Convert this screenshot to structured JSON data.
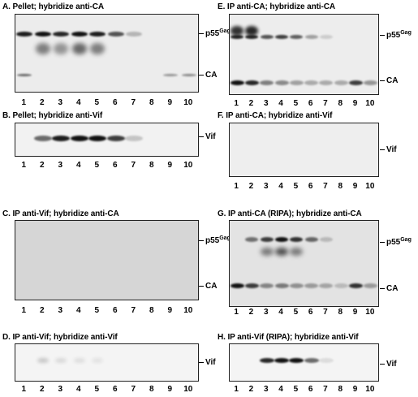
{
  "panels": [
    {
      "id": "A",
      "title": "A. Pellet; hybridize anti-CA",
      "markers": [
        {
          "main": "p55",
          "sup": "Gag"
        },
        {
          "main": "CA",
          "sup": ""
        }
      ]
    },
    {
      "id": "B",
      "title": "B. Pellet; hybridize anti-Vif",
      "markers": [
        {
          "main": "Vif",
          "sup": ""
        }
      ]
    },
    {
      "id": "C",
      "title": "C. IP anti-Vif; hybridize anti-CA",
      "markers": [
        {
          "main": "p55",
          "sup": "Gag"
        },
        {
          "main": "CA",
          "sup": ""
        }
      ]
    },
    {
      "id": "D",
      "title": "D. IP anti-Vif; hybridize anti-Vif",
      "markers": [
        {
          "main": "Vif",
          "sup": ""
        }
      ]
    },
    {
      "id": "E",
      "title": "E. IP anti-CA; hybridize anti-CA",
      "markers": [
        {
          "main": "p55",
          "sup": "Gag"
        },
        {
          "main": "CA",
          "sup": ""
        }
      ]
    },
    {
      "id": "F",
      "title": "F. IP anti-CA; hybridize anti-Vif",
      "markers": [
        {
          "main": "Vif",
          "sup": ""
        }
      ]
    },
    {
      "id": "G",
      "title": "G. IP anti-CA (RIPA); hybridize anti-CA",
      "markers": [
        {
          "main": "p55",
          "sup": "Gag"
        },
        {
          "main": "CA",
          "sup": ""
        }
      ]
    },
    {
      "id": "H",
      "title": "H. IP anti-Vif (RIPA); hybridize anti-Vif",
      "markers": [
        {
          "main": "Vif",
          "sup": ""
        }
      ]
    }
  ],
  "lane_labels": [
    "1",
    "2",
    "3",
    "4",
    "5",
    "6",
    "7",
    "8",
    "9",
    "10"
  ],
  "colors": {
    "blot_bg": "#eeeeee",
    "blot_bg_gray": "#d9d9d9",
    "band": "#111111"
  }
}
